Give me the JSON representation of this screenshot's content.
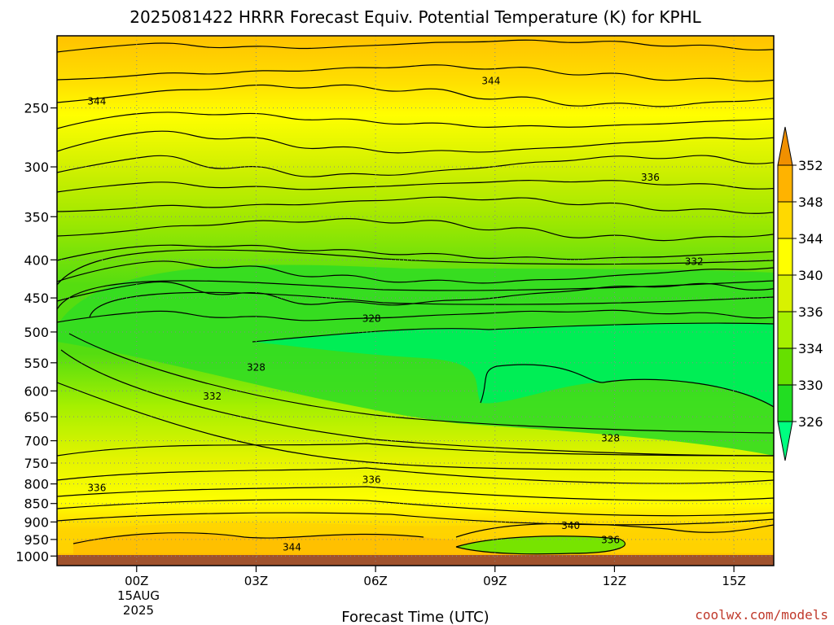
{
  "chart_data": {
    "type": "contour",
    "title": "2025081422 HRRR Forecast Equiv. Potential Temperature (K) for KPHL",
    "xlabel": "Forecast Time (UTC)",
    "x_ticks": [
      {
        "label": "00Z",
        "hour": 0
      },
      {
        "label": "03Z",
        "hour": 3
      },
      {
        "label": "06Z",
        "hour": 6
      },
      {
        "label": "09Z",
        "hour": 9
      },
      {
        "label": "12Z",
        "hour": 12
      },
      {
        "label": "15Z",
        "hour": 15
      }
    ],
    "x_date_label": [
      "15AUG",
      "2025"
    ],
    "xlim_hours": [
      -2,
      16
    ],
    "y_ticks": [
      250,
      300,
      350,
      400,
      450,
      500,
      550,
      600,
      650,
      700,
      750,
      800,
      850,
      900,
      950,
      1000
    ],
    "ylim_hpa": [
      200,
      1030
    ],
    "y_scale": "log",
    "grid": true,
    "colorbar": {
      "levels": [
        352,
        348,
        344,
        340,
        336,
        334,
        330,
        326
      ],
      "colors": [
        "#f09000",
        "#ffb300",
        "#ffd900",
        "#ffff00",
        "#d8f200",
        "#a6f000",
        "#66e000",
        "#22dd22",
        "#00ee55",
        "#00ff80"
      ],
      "extend": "both"
    },
    "contour_labels": [
      {
        "text": "344",
        "hour": -1.0,
        "hpa": 245
      },
      {
        "text": "344",
        "hour": 8.9,
        "hpa": 230
      },
      {
        "text": "336",
        "hour": 12.9,
        "hpa": 310
      },
      {
        "text": "332",
        "hour": 14.0,
        "hpa": 402
      },
      {
        "text": "328",
        "hour": 5.9,
        "hpa": 480
      },
      {
        "text": "328",
        "hour": 3.0,
        "hpa": 558
      },
      {
        "text": "332",
        "hour": 1.9,
        "hpa": 610
      },
      {
        "text": "328",
        "hour": 11.9,
        "hpa": 695
      },
      {
        "text": "336",
        "hour": 5.9,
        "hpa": 790
      },
      {
        "text": "336",
        "hour": -1.0,
        "hpa": 810
      },
      {
        "text": "340",
        "hour": 10.9,
        "hpa": 910
      },
      {
        "text": "336",
        "hour": 11.9,
        "hpa": 952
      },
      {
        "text": "344",
        "hour": 3.9,
        "hpa": 973
      }
    ],
    "surface_color": "#a0522d",
    "surface_hpa": 1015
  },
  "credit": "coolwx.com/models"
}
